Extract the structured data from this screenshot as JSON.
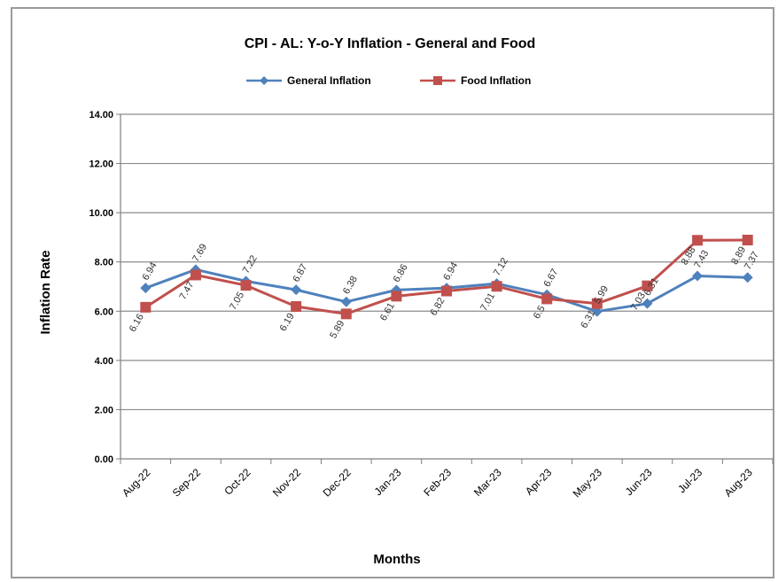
{
  "chart_data": {
    "type": "line",
    "title": "CPI - AL: Y-o-Y Inflation - General and Food",
    "xlabel": "Months",
    "ylabel": "Inflation Rate",
    "categories": [
      "Aug-22",
      "Sep-22",
      "Oct-22",
      "Nov-22",
      "Dec-22",
      "Jan-23",
      "Feb-23",
      "Mar-23",
      "Apr-23",
      "May-23",
      "Jun-23",
      "Jul-23",
      "Aug-23"
    ],
    "ylim": [
      0,
      14
    ],
    "yticks": [
      "0.00",
      "2.00",
      "4.00",
      "6.00",
      "8.00",
      "10.00",
      "12.00",
      "14.00"
    ],
    "grid": true,
    "legend_position": "top",
    "series": [
      {
        "name": "General Inflation",
        "color": "#4f81bd",
        "marker": "diamond",
        "values": [
          6.94,
          7.69,
          7.22,
          6.87,
          6.38,
          6.86,
          6.94,
          7.12,
          6.67,
          5.99,
          6.31,
          7.43,
          7.37
        ],
        "labels": [
          "6.94",
          "7.69",
          "7.22",
          "6.87",
          "6.38",
          "6.86",
          "6.94",
          "7.12",
          "6.67",
          "5.99",
          "6.31",
          "7.43",
          "7.37"
        ]
      },
      {
        "name": "Food Inflation",
        "color": "#c0504d",
        "marker": "square",
        "values": [
          6.16,
          7.47,
          7.05,
          6.19,
          5.89,
          6.61,
          6.82,
          7.01,
          6.5,
          6.31,
          7.03,
          8.88,
          8.89
        ],
        "labels": [
          "6.16",
          "7.47",
          "7.05",
          "6.19",
          "5.89",
          "6.61",
          "6.82",
          "7.01",
          "6.5",
          "6.31",
          "7.03",
          "8.88",
          "8.89"
        ]
      }
    ]
  }
}
